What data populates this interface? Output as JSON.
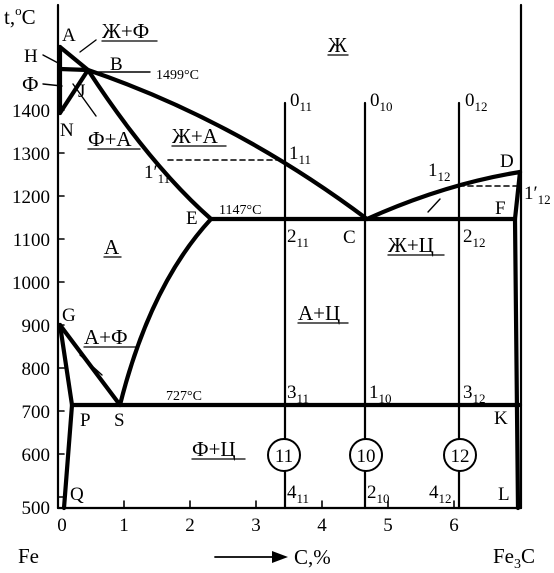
{
  "axis": {
    "y_title_t": "t,",
    "y_title_sup": "o",
    "y_title_unit": "C",
    "y_ticks": [
      "1400",
      "1300",
      "1200",
      "1100",
      "1000",
      "900",
      "800",
      "700",
      "600",
      "500"
    ],
    "x_ticks": [
      "0",
      "1",
      "2",
      "3",
      "4",
      "5",
      "6"
    ],
    "x_left": "Fe",
    "x_right_base": "Fe",
    "x_right_sub": "3",
    "x_right_tail": "C",
    "x_title": "C,%"
  },
  "points": {
    "A": "A",
    "B": "B",
    "H": "H",
    "J": "J",
    "N": "N",
    "D": "D",
    "E": "E",
    "C": "C",
    "F": "F",
    "G": "G",
    "P": "P",
    "S": "S",
    "K": "K",
    "Q": "Q",
    "L": "L"
  },
  "temps": {
    "t1499": "1499°C",
    "t1147": "1147°C",
    "t727": "727°C"
  },
  "phases": {
    "liquid": "Ж",
    "liquid_ferrite": "Ж+Ф",
    "ferrite": "Ф",
    "ferrite_austenite_top": "Ф+А",
    "liquid_austenite": "Ж+А",
    "austenite": "А",
    "liquid_cementite": "Ж+Ц",
    "austenite_cementite": "А+Ц",
    "austenite_ferrite": "А+Ф",
    "ferrite_cementite": "Ф+Ц"
  },
  "alloy_points": {
    "p011_base": "0",
    "p011_sub": "11",
    "p010_base": "0",
    "p010_sub": "10",
    "p012_base": "0",
    "p012_sub": "12",
    "p111_base": "1",
    "p111_sub": "11",
    "p112_base": "1",
    "p112_sub": "12",
    "p1p11_base": "1′",
    "p1p11_sub": "11",
    "p1p12_base": "1′",
    "p1p12_sub": "12",
    "p211_base": "2",
    "p211_sub": "11",
    "p212_base": "2",
    "p212_sub": "12",
    "p311_base": "3",
    "p311_sub": "11",
    "p110_base": "1",
    "p110_sub": "10",
    "p312_base": "3",
    "p312_sub": "12",
    "p411_base": "4",
    "p411_sub": "11",
    "p210_base": "2",
    "p210_sub": "10",
    "p412_base": "4",
    "p412_sub": "12"
  },
  "alloys": {
    "a11": "11",
    "a10": "10",
    "a12": "12"
  }
}
